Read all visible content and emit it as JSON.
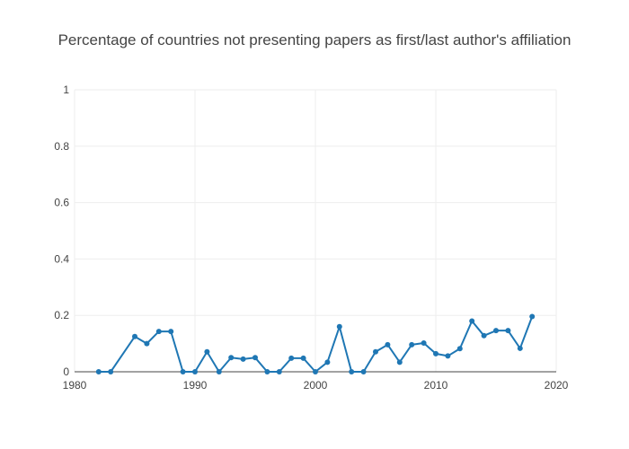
{
  "chart_data": {
    "type": "line",
    "title": "Percentage of countries not presenting papers as first/last author's affiliation",
    "xlabel": "",
    "ylabel": "",
    "xlim": [
      1980,
      2020
    ],
    "ylim": [
      0,
      1
    ],
    "x_ticks": [
      1980,
      1990,
      2000,
      2010,
      2020
    ],
    "y_ticks": [
      0,
      0.2,
      0.4,
      0.6,
      0.8,
      1
    ],
    "y_tick_labels": [
      "0",
      "0.2",
      "0.4",
      "0.6",
      "0.8",
      "1"
    ],
    "grid": true,
    "line_color": "#1f77b4",
    "series": [
      {
        "x": [
          1982,
          1983,
          1985,
          1986,
          1987,
          1988,
          1989,
          1990,
          1991,
          1992,
          1993,
          1994,
          1995,
          1996,
          1997,
          1998,
          1999,
          2000,
          2001,
          2002,
          2003,
          2004,
          2005,
          2006,
          2007,
          2008,
          2009,
          2010,
          2011,
          2012,
          2013,
          2014,
          2015,
          2016,
          2017,
          2018
        ],
        "y": [
          0,
          0,
          0.125,
          0.1,
          0.143,
          0.143,
          0,
          0,
          0.071,
          0,
          0.05,
          0.045,
          0.05,
          0,
          0,
          0.048,
          0.048,
          0,
          0.034,
          0.16,
          0,
          0,
          0.071,
          0.096,
          0.034,
          0.096,
          0.102,
          0.064,
          0.056,
          0.082,
          0.18,
          0.128,
          0.146,
          0.146,
          0.083,
          0.196
        ]
      }
    ]
  }
}
